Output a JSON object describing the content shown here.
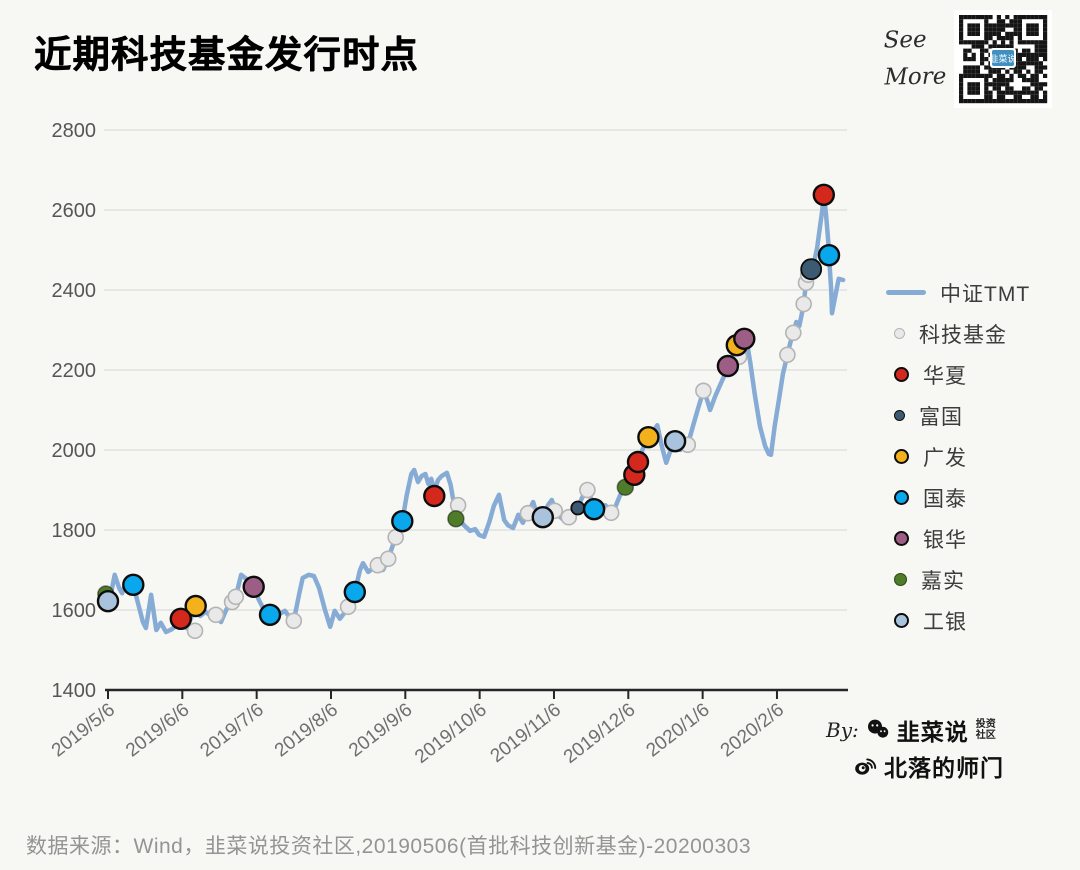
{
  "header": {
    "title": "近期科技基金发行时点",
    "see_more_line1": "See",
    "see_more_line2": "More"
  },
  "footer": {
    "source": "数据来源：Wind，韭菜说投资社区,20190506(首批科技创新基金)-20200303"
  },
  "credits": {
    "by_label": "By:",
    "wechat_name": "韭菜说",
    "wechat_suffix_top": "投资",
    "wechat_suffix_bottom": "社区",
    "weibo_name": "北落的师门"
  },
  "chart_data": {
    "type": "line",
    "title": "近期科技基金发行时点",
    "grid": true,
    "legend_position": "right",
    "x_axis": {
      "label": "",
      "unit": "fractional months since 2019/5/6",
      "tick_labels": [
        "2019/5/6",
        "2019/6/6",
        "2019/7/6",
        "2019/8/6",
        "2019/9/6",
        "2019/10/6",
        "2019/11/6",
        "2019/12/6",
        "2020/1/6",
        "2020/2/6"
      ]
    },
    "y_axis": {
      "label": "",
      "min": 1400,
      "max": 2800,
      "step": 200
    },
    "line_series": {
      "name": "中证TMT",
      "color": "#86abd5",
      "width": 4.5,
      "points": [
        [
          -0.1,
          1630
        ],
        [
          0,
          1622
        ],
        [
          0.05,
          1650
        ],
        [
          0.09,
          1688
        ],
        [
          0.15,
          1655
        ],
        [
          0.19,
          1642
        ],
        [
          0.24,
          1668
        ],
        [
          0.34,
          1663
        ],
        [
          0.4,
          1620
        ],
        [
          0.47,
          1570
        ],
        [
          0.51,
          1555
        ],
        [
          0.58,
          1638
        ],
        [
          0.65,
          1550
        ],
        [
          0.71,
          1568
        ],
        [
          0.78,
          1545
        ],
        [
          0.86,
          1552
        ],
        [
          0.91,
          1560
        ],
        [
          0.98,
          1578
        ],
        [
          1.05,
          1555
        ],
        [
          1.12,
          1580
        ],
        [
          1.18,
          1610
        ],
        [
          1.24,
          1585
        ],
        [
          1.31,
          1595
        ],
        [
          1.37,
          1588
        ],
        [
          1.45,
          1588
        ],
        [
          1.52,
          1570
        ],
        [
          1.59,
          1600
        ],
        [
          1.65,
          1620
        ],
        [
          1.72,
          1633
        ],
        [
          1.79,
          1688
        ],
        [
          1.86,
          1678
        ],
        [
          1.92,
          1665
        ],
        [
          1.96,
          1658
        ],
        [
          2.03,
          1625
        ],
        [
          2.1,
          1600
        ],
        [
          2.18,
          1588
        ],
        [
          2.25,
          1595
        ],
        [
          2.31,
          1590
        ],
        [
          2.38,
          1598
        ],
        [
          2.45,
          1580
        ],
        [
          2.5,
          1573
        ],
        [
          2.57,
          1638
        ],
        [
          2.62,
          1680
        ],
        [
          2.7,
          1688
        ],
        [
          2.77,
          1685
        ],
        [
          2.84,
          1655
        ],
        [
          2.92,
          1600
        ],
        [
          2.99,
          1558
        ],
        [
          3.05,
          1598
        ],
        [
          3.12,
          1578
        ],
        [
          3.19,
          1595
        ],
        [
          3.26,
          1612
        ],
        [
          3.32,
          1645
        ],
        [
          3.39,
          1700
        ],
        [
          3.43,
          1717
        ],
        [
          3.5,
          1695
        ],
        [
          3.57,
          1705
        ],
        [
          3.63,
          1712
        ],
        [
          3.7,
          1700
        ],
        [
          3.77,
          1728
        ],
        [
          3.82,
          1755
        ],
        [
          3.87,
          1782
        ],
        [
          3.96,
          1822
        ],
        [
          4.02,
          1888
        ],
        [
          4.08,
          1940
        ],
        [
          4.12,
          1950
        ],
        [
          4.17,
          1920
        ],
        [
          4.22,
          1935
        ],
        [
          4.27,
          1940
        ],
        [
          4.31,
          1915
        ],
        [
          4.35,
          1928
        ],
        [
          4.39,
          1897
        ],
        [
          4.44,
          1925
        ],
        [
          4.49,
          1935
        ],
        [
          4.56,
          1943
        ],
        [
          4.61,
          1912
        ],
        [
          4.64,
          1880
        ],
        [
          4.7,
          1848
        ],
        [
          4.75,
          1820
        ],
        [
          4.8,
          1810
        ],
        [
          4.87,
          1798
        ],
        [
          4.94,
          1802
        ],
        [
          4.99,
          1788
        ],
        [
          5.06,
          1783
        ],
        [
          5.13,
          1820
        ],
        [
          5.19,
          1860
        ],
        [
          5.26,
          1888
        ],
        [
          5.33,
          1825
        ],
        [
          5.38,
          1812
        ],
        [
          5.45,
          1805
        ],
        [
          5.52,
          1838
        ],
        [
          5.58,
          1818
        ],
        [
          5.65,
          1842
        ],
        [
          5.72,
          1870
        ],
        [
          5.78,
          1832
        ],
        [
          5.85,
          1832
        ],
        [
          5.92,
          1862
        ],
        [
          5.97,
          1875
        ],
        [
          6.04,
          1840
        ],
        [
          6.11,
          1828
        ],
        [
          6.18,
          1835
        ],
        [
          6.24,
          1845
        ],
        [
          6.32,
          1858
        ],
        [
          6.39,
          1885
        ],
        [
          6.46,
          1900
        ],
        [
          6.54,
          1855
        ],
        [
          6.61,
          1835
        ],
        [
          6.69,
          1862
        ],
        [
          6.77,
          1845
        ],
        [
          6.83,
          1860
        ],
        [
          6.89,
          1887
        ],
        [
          6.96,
          1907
        ],
        [
          7.02,
          1922
        ],
        [
          7.08,
          1940
        ],
        [
          7.13,
          1972
        ],
        [
          7.2,
          2005
        ],
        [
          7.27,
          2032
        ],
        [
          7.33,
          2045
        ],
        [
          7.39,
          2062
        ],
        [
          7.45,
          2010
        ],
        [
          7.51,
          1968
        ],
        [
          7.57,
          2000
        ],
        [
          7.63,
          2022
        ],
        [
          7.7,
          2000
        ],
        [
          7.75,
          2008
        ],
        [
          7.8,
          2013
        ],
        [
          7.87,
          2060
        ],
        [
          7.94,
          2105
        ],
        [
          8.01,
          2148
        ],
        [
          8.06,
          2125
        ],
        [
          8.1,
          2100
        ],
        [
          8.17,
          2135
        ],
        [
          8.23,
          2160
        ],
        [
          8.29,
          2185
        ],
        [
          8.34,
          2210
        ],
        [
          8.41,
          2230
        ],
        [
          8.46,
          2262
        ],
        [
          8.5,
          2245
        ],
        [
          8.56,
          2280
        ],
        [
          8.58,
          2285
        ],
        [
          8.64,
          2220
        ],
        [
          8.7,
          2140
        ],
        [
          8.77,
          2060
        ],
        [
          8.84,
          2010
        ],
        [
          8.89,
          1990
        ],
        [
          8.92,
          1988
        ],
        [
          8.97,
          2060
        ],
        [
          9.03,
          2130
        ],
        [
          9.08,
          2190
        ],
        [
          9.14,
          2238
        ],
        [
          9.18,
          2268
        ],
        [
          9.22,
          2293
        ],
        [
          9.26,
          2320
        ],
        [
          9.3,
          2310
        ],
        [
          9.34,
          2345
        ],
        [
          9.36,
          2365
        ],
        [
          9.39,
          2418
        ],
        [
          9.43,
          2435
        ],
        [
          9.46,
          2452
        ],
        [
          9.5,
          2470
        ],
        [
          9.54,
          2505
        ],
        [
          9.58,
          2560
        ],
        [
          9.61,
          2600
        ],
        [
          9.63,
          2638
        ],
        [
          9.66,
          2590
        ],
        [
          9.69,
          2520
        ],
        [
          9.7,
          2487
        ],
        [
          9.73,
          2400
        ],
        [
          9.74,
          2342
        ],
        [
          9.79,
          2390
        ],
        [
          9.83,
          2428
        ],
        [
          9.89,
          2425
        ]
      ]
    },
    "scatter_series": [
      {
        "name": "科技基金",
        "color": "#e9e9e9",
        "stroke": "#b4b4b4",
        "stroke_width": 1.6,
        "radius": 7.5,
        "z": 1,
        "points": [
          [
            1.17,
            1548
          ],
          [
            1.45,
            1588
          ],
          [
            1.67,
            1620
          ],
          [
            1.72,
            1633
          ],
          [
            2.5,
            1573
          ],
          [
            3.23,
            1608
          ],
          [
            3.63,
            1712
          ],
          [
            3.77,
            1728
          ],
          [
            3.87,
            1782
          ],
          [
            4.71,
            1862
          ],
          [
            5.65,
            1842
          ],
          [
            6.01,
            1848
          ],
          [
            6.2,
            1832
          ],
          [
            6.45,
            1900
          ],
          [
            6.77,
            1843
          ],
          [
            7.8,
            2013
          ],
          [
            8.01,
            2148
          ],
          [
            8.49,
            2233
          ],
          [
            9.14,
            2238
          ],
          [
            9.22,
            2293
          ],
          [
            9.36,
            2365
          ],
          [
            9.39,
            2418
          ],
          [
            9.42,
            2438
          ]
        ]
      },
      {
        "name": "华夏",
        "color": "#d5281c",
        "stroke": "#0d0d0d",
        "stroke_width": 2.4,
        "radius": 10,
        "z": 6,
        "points": [
          [
            0.98,
            1578
          ],
          [
            4.39,
            1885
          ],
          [
            7.08,
            1938
          ],
          [
            7.13,
            1970
          ],
          [
            9.63,
            2638
          ]
        ]
      },
      {
        "name": "富国",
        "color": "#3c5a72",
        "stroke": "#0d0d0d",
        "stroke_width": 1.8,
        "radius": 7,
        "z": 5,
        "points": [
          [
            6.32,
            1855,
            6.5
          ],
          [
            9.46,
            2452,
            10
          ]
        ]
      },
      {
        "name": "广发",
        "color": "#f3b11b",
        "stroke": "#0d0d0d",
        "stroke_width": 2.4,
        "radius": 10,
        "z": 3,
        "points": [
          [
            1.18,
            1610
          ],
          [
            7.27,
            2032
          ],
          [
            8.46,
            2262
          ]
        ]
      },
      {
        "name": "国泰",
        "color": "#09a8ec",
        "stroke": "#0d0d0d",
        "stroke_width": 2.4,
        "radius": 10,
        "z": 7,
        "points": [
          [
            0.34,
            1663
          ],
          [
            2.18,
            1588
          ],
          [
            3.32,
            1645
          ],
          [
            3.96,
            1822
          ],
          [
            6.54,
            1852
          ],
          [
            9.7,
            2487
          ]
        ]
      },
      {
        "name": "银华",
        "color": "#9d5e85",
        "stroke": "#0d0d0d",
        "stroke_width": 2.4,
        "radius": 10,
        "z": 4,
        "points": [
          [
            1.96,
            1658
          ],
          [
            8.34,
            2210
          ],
          [
            8.56,
            2278
          ]
        ]
      },
      {
        "name": "嘉实",
        "color": "#4f7c29",
        "stroke": "rgba(0,0,0,0.45)",
        "stroke_width": 1.5,
        "radius": 8,
        "z": 2,
        "points": [
          [
            -0.03,
            1640
          ],
          [
            4.68,
            1828
          ],
          [
            6.96,
            1907
          ]
        ]
      },
      {
        "name": "工银",
        "color": "#a9c3dc",
        "stroke": "#0d0d0d",
        "stroke_width": 2.4,
        "radius": 10,
        "z": 8,
        "points": [
          [
            0.0,
            1622
          ],
          [
            5.85,
            1832
          ],
          [
            7.63,
            2022
          ]
        ]
      }
    ]
  }
}
